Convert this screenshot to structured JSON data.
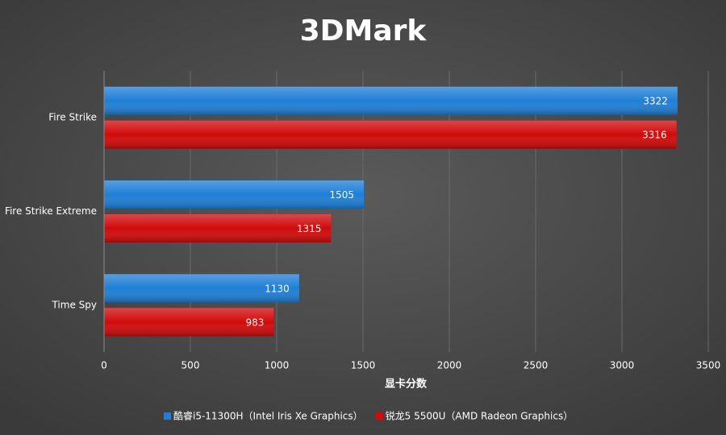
{
  "chart_data": {
    "type": "bar",
    "orientation": "horizontal",
    "title": "3DMark",
    "xlabel": "显卡分数",
    "categories": [
      "Fire Strike",
      "Fire Strike Extreme",
      "Time Spy"
    ],
    "series": [
      {
        "name": "酷睿i5-11300H（Intel Iris Xe Graphics）",
        "color": "#1f7fd6",
        "values": [
          3322,
          1505,
          1130
        ]
      },
      {
        "name": "锐龙5 5500U（AMD Radeon Graphics）",
        "color": "#d10a0a",
        "values": [
          3316,
          1315,
          983
        ]
      }
    ],
    "xlim": [
      0,
      3500
    ],
    "xticks": [
      0,
      500,
      1000,
      1500,
      2000,
      2500,
      3000,
      3500
    ],
    "grid": true,
    "legend": "bottom"
  }
}
